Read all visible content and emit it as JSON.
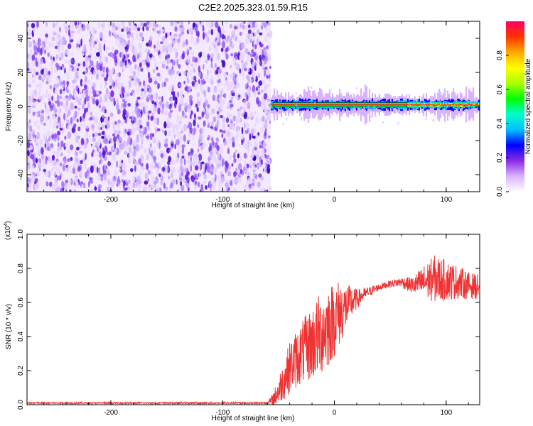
{
  "title": "C2E2.2025.323.01.59.R15",
  "colors": {
    "signal_red": "#ee3333",
    "noise_purple": "#6a1ff0",
    "axis": "#000000"
  },
  "chart_data": [
    {
      "type": "heatmap",
      "xlabel": "Height of straight line (km)",
      "ylabel": "Frequency (Hz)",
      "xlim": [
        -275,
        130
      ],
      "ylim": [
        -50,
        50
      ],
      "x_ticks": [
        -200,
        -100,
        0,
        100
      ],
      "x_tick_labels": [
        "-200",
        "-100",
        "0",
        "100"
      ],
      "y_ticks": [
        -40,
        -20,
        0,
        20,
        40
      ],
      "y_tick_labels": [
        "-40",
        "-20",
        "0",
        "20",
        "40"
      ],
      "noise_region": [
        -275,
        -57
      ],
      "signal_region": [
        -57,
        130
      ],
      "signal_center_freq": 1,
      "colorbar": {
        "label": "Normalized spectral amplitude",
        "range": [
          0,
          1
        ],
        "ticks": [
          0.0,
          0.2,
          0.4,
          0.6,
          0.8
        ],
        "tick_labels": [
          "0.0",
          "0.2",
          "0.4",
          "0.6",
          "0.8"
        ],
        "colormap": [
          "#ffffff",
          "#d9b3ff",
          "#8a2be2",
          "#0000ff",
          "#00bfff",
          "#00ffcc",
          "#00ff00",
          "#aaff00",
          "#ffff00",
          "#ffaa00",
          "#ff3300",
          "#ff0066"
        ]
      }
    },
    {
      "type": "line",
      "xlabel": "Height of straight line (km)",
      "ylabel": "SNR (10 * v/v)",
      "multiplier": "(x10",
      "multiplier_exp": "4",
      "multiplier_close": ")",
      "xlim": [
        -275,
        130
      ],
      "ylim": [
        0,
        1.0
      ],
      "x_ticks": [
        -200,
        -100,
        0,
        100
      ],
      "x_tick_labels": [
        "-200",
        "-100",
        "0",
        "100"
      ],
      "y_ticks": [
        0.0,
        0.2,
        0.4,
        0.6,
        0.8,
        1.0
      ],
      "y_tick_labels": [
        "0.0",
        "0.2",
        "0.4",
        "0.6",
        "0.8",
        "1.0"
      ],
      "series": [
        {
          "color": "#ee3333",
          "x": [
            -275,
            -250,
            -200,
            -150,
            -100,
            -60,
            -55,
            -50,
            -45,
            -40,
            -35,
            -30,
            -25,
            -20,
            -15,
            -10,
            -5,
            0,
            5,
            10,
            15,
            20,
            25,
            30,
            40,
            50,
            60,
            70,
            80,
            90,
            100,
            110,
            120,
            130
          ],
          "y": [
            0.01,
            0.01,
            0.01,
            0.01,
            0.01,
            0.01,
            0.03,
            0.08,
            0.15,
            0.22,
            0.26,
            0.3,
            0.33,
            0.36,
            0.4,
            0.43,
            0.47,
            0.5,
            0.54,
            0.57,
            0.6,
            0.62,
            0.64,
            0.66,
            0.69,
            0.71,
            0.72,
            0.7,
            0.72,
            0.74,
            0.73,
            0.72,
            0.7,
            0.69
          ],
          "spread": [
            0,
            0,
            0,
            0,
            0,
            0,
            0.04,
            0.08,
            0.12,
            0.15,
            0.17,
            0.18,
            0.2,
            0.22,
            0.24,
            0.25,
            0.25,
            0.22,
            0.2,
            0.14,
            0.1,
            0.06,
            0.04,
            0.03,
            0.02,
            0.02,
            0.03,
            0.05,
            0.1,
            0.14,
            0.12,
            0.1,
            0.08,
            0.07
          ]
        }
      ]
    }
  ]
}
